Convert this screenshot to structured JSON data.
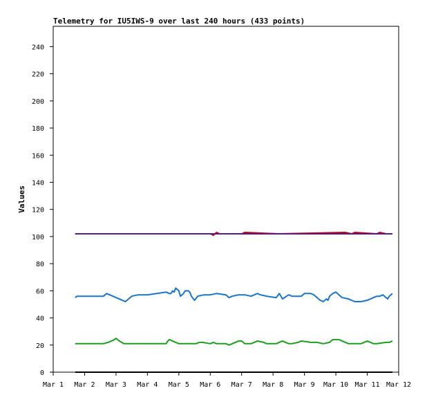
{
  "chart_data": {
    "type": "line",
    "title": "Telemetry for IU5IWS-9 over last 240 hours (433 points)",
    "xlabel": "",
    "ylabel": "Values",
    "ylim": [
      0,
      255
    ],
    "xlim": [
      0,
      11
    ],
    "x_tick_labels": [
      "Mar 1",
      "Mar 2",
      "Mar 3",
      "Mar 4",
      "Mar 5",
      "Mar 6",
      "Mar 7",
      "Mar 8",
      "Mar 9",
      "Mar 10",
      "Mar 11",
      "Mar 12"
    ],
    "y_ticks": [
      0,
      20,
      40,
      60,
      80,
      100,
      120,
      140,
      160,
      180,
      200,
      220,
      240
    ],
    "grid": false,
    "legend": "none",
    "series": [
      {
        "color": "#000000",
        "x": [
          0.7,
          10.8
        ],
        "y": [
          0,
          0
        ]
      },
      {
        "color": "#1a9f1a",
        "x": [
          0.7,
          1.6,
          1.75,
          1.85,
          1.95,
          2.0,
          2.1,
          2.25,
          3.0,
          3.6,
          3.65,
          3.7,
          3.8,
          3.9,
          4.0,
          4.1,
          4.2,
          4.55,
          4.65,
          4.75,
          5.0,
          5.1,
          5.2,
          5.5,
          5.6,
          5.7,
          5.8,
          5.9,
          6.0,
          6.05,
          6.1,
          6.3,
          6.4,
          6.5,
          6.7,
          6.8,
          6.9,
          7.1,
          7.3,
          7.4,
          7.5,
          7.6,
          7.8,
          7.9,
          8.2,
          8.4,
          8.6,
          8.8,
          8.9,
          9.1,
          9.2,
          9.4,
          9.5,
          9.8,
          9.9,
          10.0,
          10.2,
          10.3,
          10.6,
          10.7,
          10.8
        ],
        "y": [
          21,
          21,
          22,
          23,
          24,
          25,
          23,
          21,
          21,
          21,
          23,
          24,
          23,
          22,
          21,
          21,
          21,
          21,
          22,
          22,
          21,
          22,
          21,
          21,
          20,
          21,
          22,
          23,
          23,
          22,
          21,
          21,
          22,
          23,
          22,
          21,
          21,
          21,
          23,
          22,
          21,
          21,
          22,
          23,
          22,
          22,
          21,
          22,
          24,
          24,
          23,
          21,
          21,
          21,
          22,
          23,
          21,
          21,
          22,
          22,
          23
        ]
      },
      {
        "color": "#1874cd",
        "x": [
          0.7,
          0.75,
          1.6,
          1.7,
          1.8,
          1.9,
          2.0,
          2.1,
          2.2,
          2.3,
          2.5,
          2.7,
          3.0,
          3.3,
          3.6,
          3.7,
          3.75,
          3.8,
          3.85,
          3.9,
          4.0,
          4.05,
          4.1,
          4.15,
          4.2,
          4.3,
          4.35,
          4.4,
          4.5,
          4.6,
          4.8,
          5.0,
          5.2,
          5.5,
          5.6,
          5.7,
          5.9,
          6.1,
          6.3,
          6.5,
          6.6,
          6.8,
          7.1,
          7.2,
          7.3,
          7.5,
          7.6,
          7.8,
          7.9,
          8.0,
          8.2,
          8.3,
          8.5,
          8.6,
          8.7,
          8.75,
          8.8,
          8.9,
          9.0,
          9.2,
          9.4,
          9.6,
          9.8,
          10.0,
          10.2,
          10.3,
          10.4,
          10.5,
          10.6,
          10.65,
          10.7,
          10.8
        ],
        "y": [
          55,
          56,
          56,
          58,
          57,
          56,
          55,
          54,
          53,
          52,
          56,
          57,
          57,
          58,
          59,
          58,
          58,
          60,
          59,
          62,
          60,
          56,
          57,
          58,
          60,
          60,
          59,
          56,
          53,
          56,
          57,
          57,
          58,
          57,
          55,
          56,
          57,
          57,
          56,
          58,
          57,
          56,
          55,
          58,
          54,
          57,
          56,
          56,
          56,
          58,
          58,
          57,
          53,
          52,
          54,
          53,
          56,
          58,
          59,
          55,
          54,
          52,
          52,
          53,
          55,
          56,
          56,
          57,
          55,
          54,
          56,
          58
        ]
      },
      {
        "color": "#cd0000",
        "x": [
          0.7,
          4.5,
          5.0,
          5.1,
          5.2,
          5.3,
          6.0,
          6.1,
          7.2,
          9.3,
          9.5,
          9.6,
          10.3,
          10.4,
          10.6,
          10.8
        ],
        "y": [
          102,
          102,
          102,
          101,
          103,
          102,
          102,
          103,
          102,
          103,
          102,
          103,
          102,
          103,
          102,
          102
        ]
      },
      {
        "color": "#551a8b",
        "x": [
          0.7,
          10.8
        ],
        "y": [
          102,
          102
        ]
      }
    ]
  }
}
